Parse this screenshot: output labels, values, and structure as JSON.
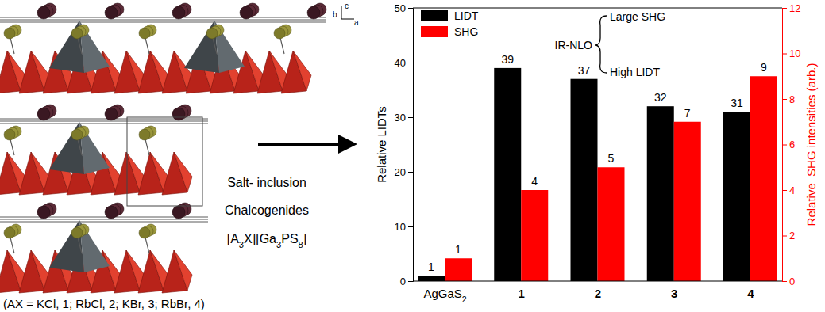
{
  "chart_data": {
    "type": "bar",
    "categories": [
      "AgGaS2",
      "1",
      "2",
      "3",
      "4"
    ],
    "series": [
      {
        "name": "LIDT",
        "color": "#000000",
        "values": [
          1,
          39,
          37,
          32,
          31
        ]
      },
      {
        "name": "SHG",
        "color": "#ff0000",
        "values": [
          1,
          4,
          5,
          7,
          9
        ],
        "axis": "y2"
      }
    ],
    "ylabel": "Relative LIDTs",
    "y2label": "Relative  SHG intensities (arb.)",
    "ylim": [
      0,
      50
    ],
    "yticks": [
      0,
      10,
      20,
      30,
      40,
      50
    ],
    "y2lim": [
      0,
      12
    ],
    "y2ticks": [
      0,
      2,
      4,
      6,
      8,
      10,
      12
    ],
    "data_labels": true,
    "legend": "upper left",
    "grid": false,
    "annotations": [
      "IR-NLO",
      "Large SHG",
      "High LIDT"
    ]
  },
  "diagram": {
    "caption": [
      "Salt- inclusion",
      "Chalcogenides",
      "[A3X][Ga3PS8]"
    ],
    "note": "(AX = KCl, 1; RbCl, 2; KBr, 3; RbBr, 4)",
    "axis_labels": [
      "b",
      "c",
      "a"
    ]
  }
}
